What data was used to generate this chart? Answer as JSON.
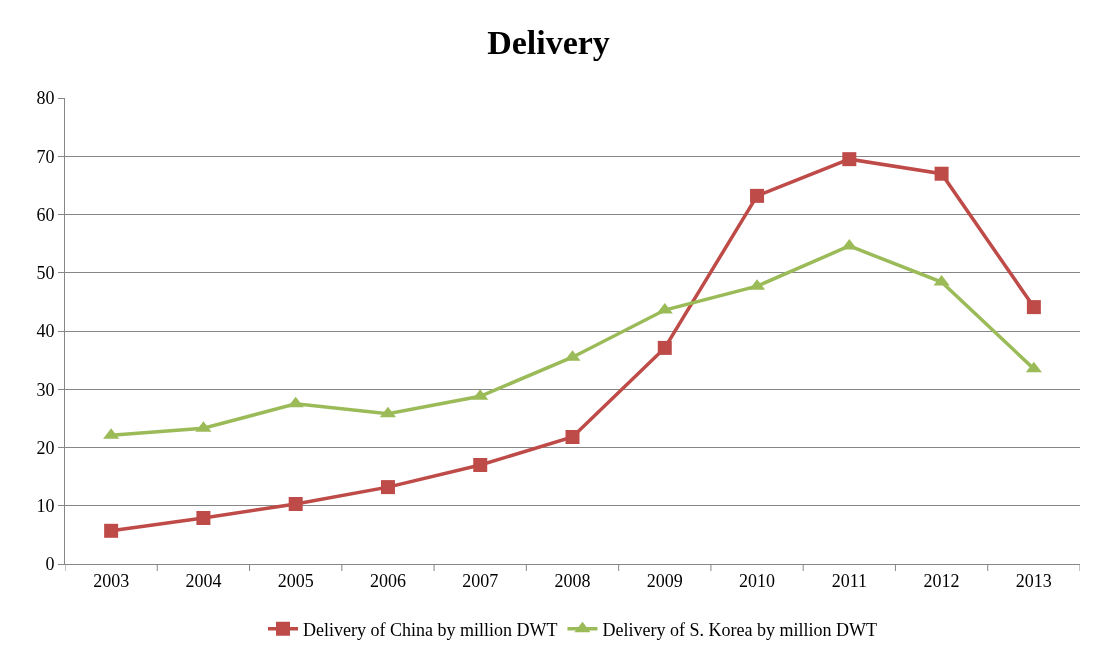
{
  "chart_data": {
    "type": "line",
    "title": "Delivery",
    "categories": [
      "2003",
      "2004",
      "2005",
      "2006",
      "2007",
      "2008",
      "2009",
      "2010",
      "2011",
      "2012",
      "2013"
    ],
    "series": [
      {
        "name": "Delivery of China by million DWT",
        "color": "#be4b48",
        "marker": "square",
        "values": [
          5.7,
          7.9,
          10.3,
          13.2,
          17.0,
          21.8,
          37.1,
          63.2,
          69.5,
          67.0,
          44.1
        ]
      },
      {
        "name": "Delivery of S. Korea by million DWT",
        "color": "#9bbb59",
        "marker": "triangle",
        "values": [
          22.1,
          23.3,
          27.5,
          25.8,
          28.8,
          35.5,
          43.6,
          47.7,
          54.6,
          48.4,
          33.5
        ]
      }
    ],
    "ylim": [
      0,
      80
    ],
    "yticks": [
      0,
      10,
      20,
      30,
      40,
      50,
      60,
      70,
      80
    ],
    "grid": "y",
    "legend": "bottom",
    "line_style": "solid"
  }
}
